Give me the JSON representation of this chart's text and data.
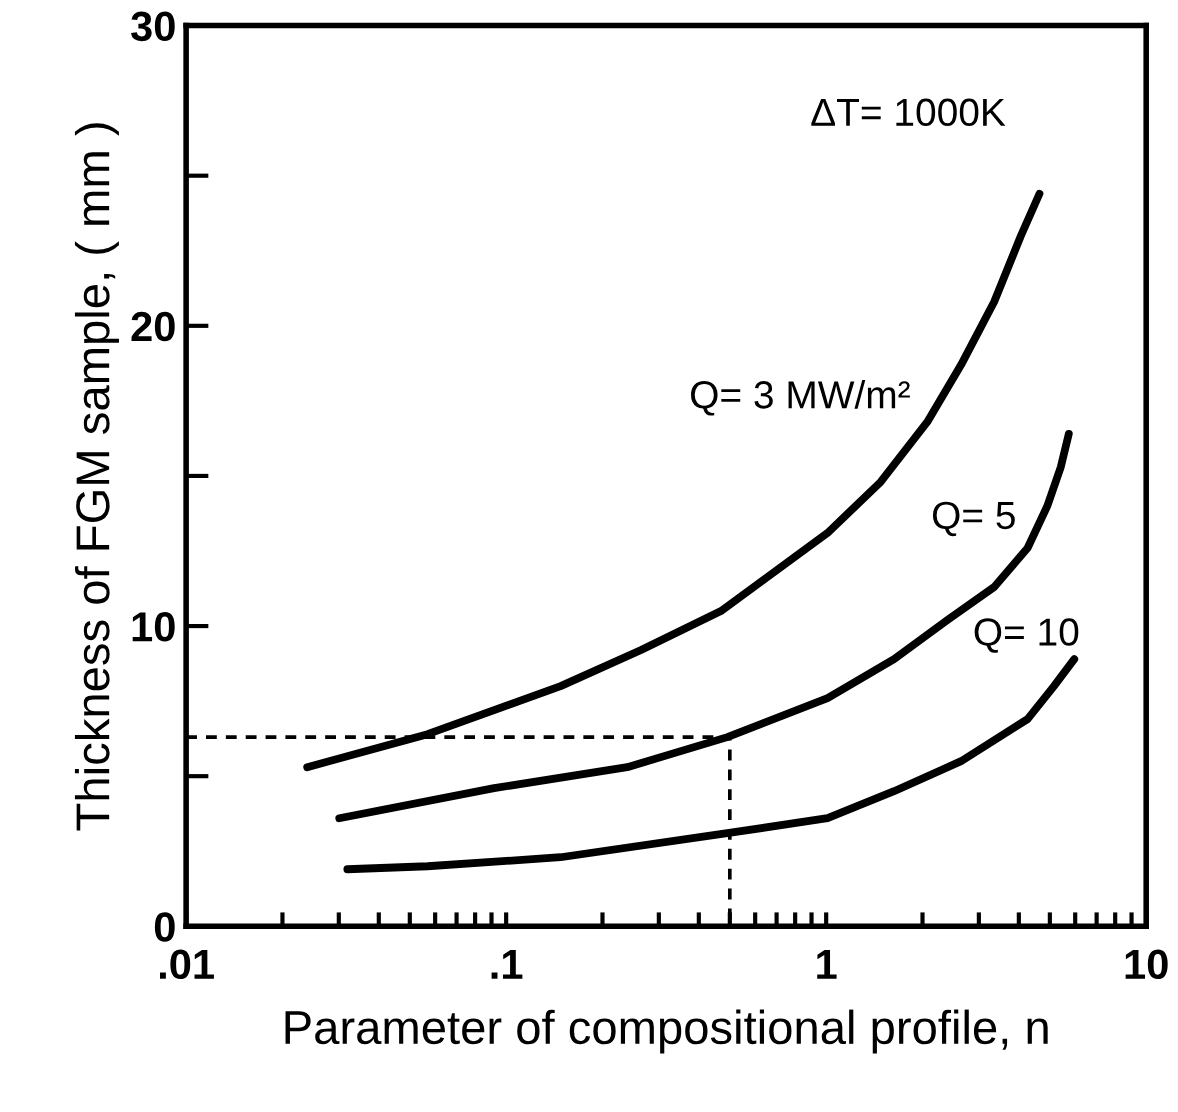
{
  "chart_data": {
    "type": "line",
    "xlabel": "Parameter of compositional profile, n",
    "ylabel": "Thickness of FGM sample, ( mm )",
    "log": "x",
    "xlim": [
      0.01,
      10
    ],
    "ylim": [
      0,
      30
    ],
    "line_style": "solid",
    "marker": "none",
    "grid": false,
    "legend": false,
    "xticks": [
      {
        "value": 0.01,
        "label": ".01"
      },
      {
        "value": 0.02,
        "label": null
      },
      {
        "value": 0.03,
        "label": null
      },
      {
        "value": 0.04,
        "label": null
      },
      {
        "value": 0.05,
        "label": null
      },
      {
        "value": 0.06,
        "label": null
      },
      {
        "value": 0.07,
        "label": null
      },
      {
        "value": 0.08,
        "label": null
      },
      {
        "value": 0.09,
        "label": null
      },
      {
        "value": 0.1,
        "label": ".1"
      },
      {
        "value": 0.2,
        "label": null
      },
      {
        "value": 0.3,
        "label": null
      },
      {
        "value": 0.4,
        "label": null
      },
      {
        "value": 0.5,
        "label": null
      },
      {
        "value": 0.6,
        "label": null
      },
      {
        "value": 0.7,
        "label": null
      },
      {
        "value": 0.8,
        "label": null
      },
      {
        "value": 0.9,
        "label": null
      },
      {
        "value": 1,
        "label": "1"
      },
      {
        "value": 2,
        "label": null
      },
      {
        "value": 3,
        "label": null
      },
      {
        "value": 4,
        "label": null
      },
      {
        "value": 5,
        "label": null
      },
      {
        "value": 6,
        "label": null
      },
      {
        "value": 7,
        "label": null
      },
      {
        "value": 8,
        "label": null
      },
      {
        "value": 9,
        "label": null
      },
      {
        "value": 10,
        "label": "10"
      }
    ],
    "yticks": [
      0,
      {
        "value": 5,
        "label": null
      },
      10,
      {
        "value": 15,
        "label": null
      },
      20,
      {
        "value": 25,
        "label": null
      },
      30
    ],
    "series": [
      {
        "name": "Q= 3 MW/m²",
        "color": "#000000",
        "x": [
          0.0239,
          0.0568,
          0.148,
          0.264,
          0.469,
          1.01,
          1.48,
          2.07,
          2.64,
          3.35,
          4.06,
          4.64
        ],
        "values": [
          5.3,
          6.4,
          8.0,
          9.2,
          10.5,
          13.1,
          14.8,
          16.8,
          18.7,
          20.8,
          23.0,
          24.4
        ]
      },
      {
        "name": "Q= 5",
        "color": "#000000",
        "x": [
          0.0301,
          0.0917,
          0.239,
          0.491,
          1.01,
          1.63,
          2.39,
          3.35,
          4.26,
          4.91,
          5.41,
          5.73
        ],
        "values": [
          3.6,
          4.6,
          5.3,
          6.3,
          7.6,
          8.9,
          10.2,
          11.3,
          12.6,
          14.0,
          15.3,
          16.4
        ]
      },
      {
        "name": "Q= 10",
        "color": "#000000",
        "x": [
          0.0319,
          0.0568,
          0.148,
          0.491,
          1.01,
          1.63,
          2.64,
          4.26,
          5.15,
          5.96
        ],
        "values": [
          1.9,
          2.0,
          2.3,
          3.1,
          3.6,
          4.5,
          5.5,
          6.9,
          8.0,
          8.9
        ]
      },
      {
        "color": "#000000",
        "line_style": "dashed",
        "x": [
          0.01,
          0.5,
          0.5
        ],
        "values": [
          6.3,
          6.3,
          0
        ]
      }
    ],
    "annotations": [
      "ΔT= 1000K"
    ]
  }
}
